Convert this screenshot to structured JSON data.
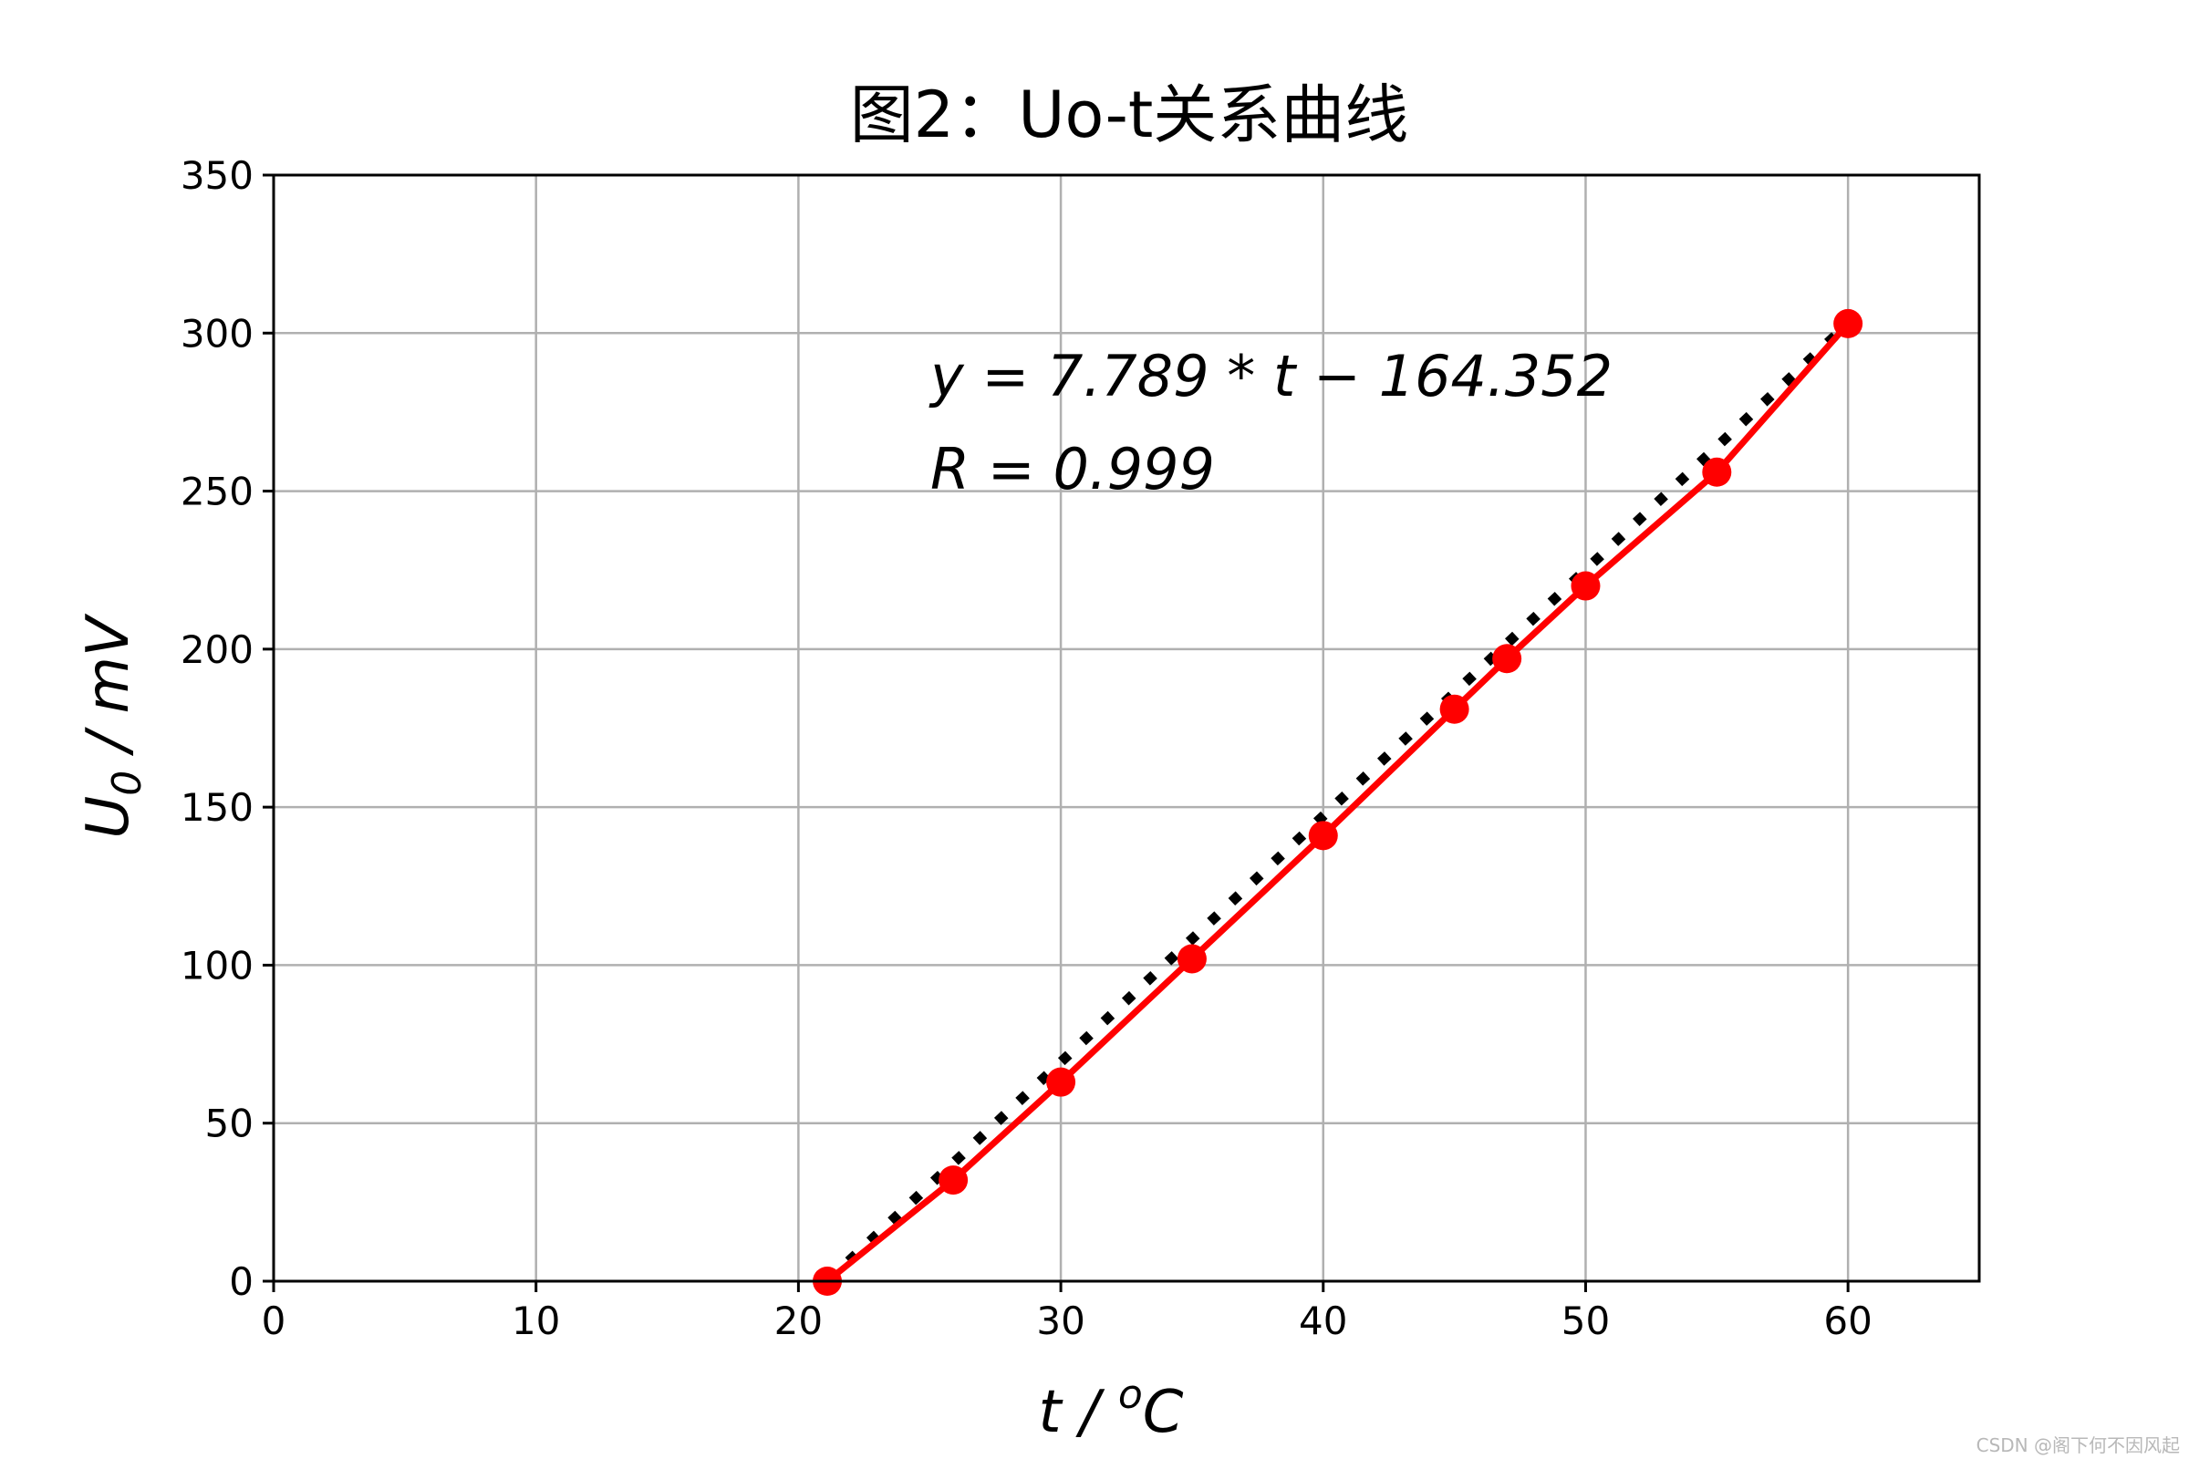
{
  "chart_data": {
    "type": "line",
    "title": "图2：Uo-t关系曲线",
    "xlabel": {
      "main": "t / ",
      "sup": "o",
      "unit": "C"
    },
    "ylabel": {
      "main": "U",
      "sub": "0",
      "unit": " / mV"
    },
    "xlim": [
      0,
      65
    ],
    "ylim": [
      0,
      350
    ],
    "xticks": [
      "0",
      "10",
      "20",
      "30",
      "40",
      "50",
      "60"
    ],
    "yticks": [
      "0",
      "50",
      "100",
      "150",
      "200",
      "250",
      "300",
      "350"
    ],
    "grid": true,
    "series": [
      {
        "style": "solid-line-with-markers",
        "color": "#ff0000",
        "x": [
          21.1,
          25.9,
          30,
          35,
          40,
          45,
          47,
          50,
          55,
          60
        ],
        "y": [
          0,
          32,
          63,
          102,
          141,
          181,
          197,
          220,
          256,
          303
        ]
      },
      {
        "style": "dotted-fit-line",
        "color": "#000000",
        "x": [
          21.1,
          60
        ],
        "y": [
          0,
          303
        ]
      }
    ],
    "annotations": {
      "equation": "y = 7.789 * t − 164.352",
      "r_value": "R  =  0.999"
    }
  },
  "watermark": "CSDN @阁下何不因风起"
}
